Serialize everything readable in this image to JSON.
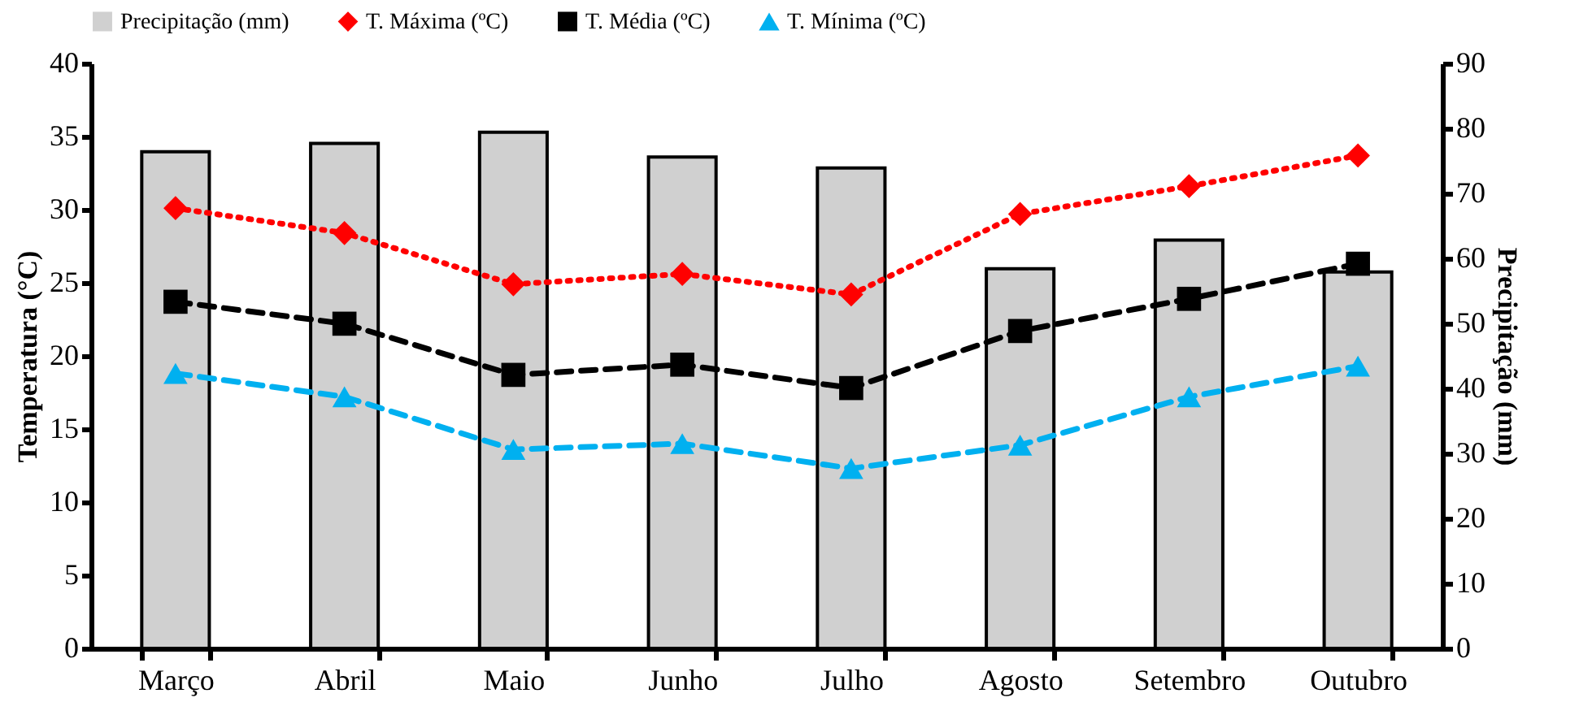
{
  "chart_data": {
    "type": "line",
    "categories": [
      "Março",
      "Abril",
      "Maio",
      "Junho",
      "Julho",
      "Agosto",
      "Setembro",
      "Outubro"
    ],
    "ylabel": "Temperatura (°C)",
    "y2label": "Precipitação (mm)",
    "ylim": [
      0,
      40
    ],
    "yticks": [
      0,
      5,
      10,
      15,
      20,
      25,
      30,
      35,
      40
    ],
    "y2lim": [
      0,
      90
    ],
    "y2ticks": [
      0,
      10,
      20,
      30,
      40,
      50,
      60,
      70,
      80,
      90
    ],
    "legend": "top",
    "grid": false,
    "series": [
      {
        "name": "Precipitação (mm)",
        "type": "bar",
        "axis": "y2",
        "color": "#d0d0d0",
        "values": [
          76.4,
          77.7,
          79.4,
          75.6,
          73.9,
          58.4,
          62.8,
          57.9
        ]
      },
      {
        "name": "T. Máxima (ºC)",
        "color": "#ff0000",
        "marker": "diamond",
        "line_style": "dotted",
        "values": [
          30.1,
          28.4,
          24.9,
          25.6,
          24.2,
          29.7,
          31.6,
          33.7
        ]
      },
      {
        "name": "T. Média (ºC)",
        "color": "#000000",
        "marker": "square",
        "line_style": "dashed",
        "values": [
          23.7,
          22.2,
          18.7,
          19.4,
          17.8,
          21.7,
          23.9,
          26.3
        ]
      },
      {
        "name": "T. Mínima (ºC)",
        "color": "#00b0f0",
        "marker": "triangle",
        "line_style": "dashed",
        "values": [
          18.8,
          17.2,
          13.6,
          14.0,
          12.3,
          13.9,
          17.2,
          19.3
        ]
      }
    ]
  }
}
